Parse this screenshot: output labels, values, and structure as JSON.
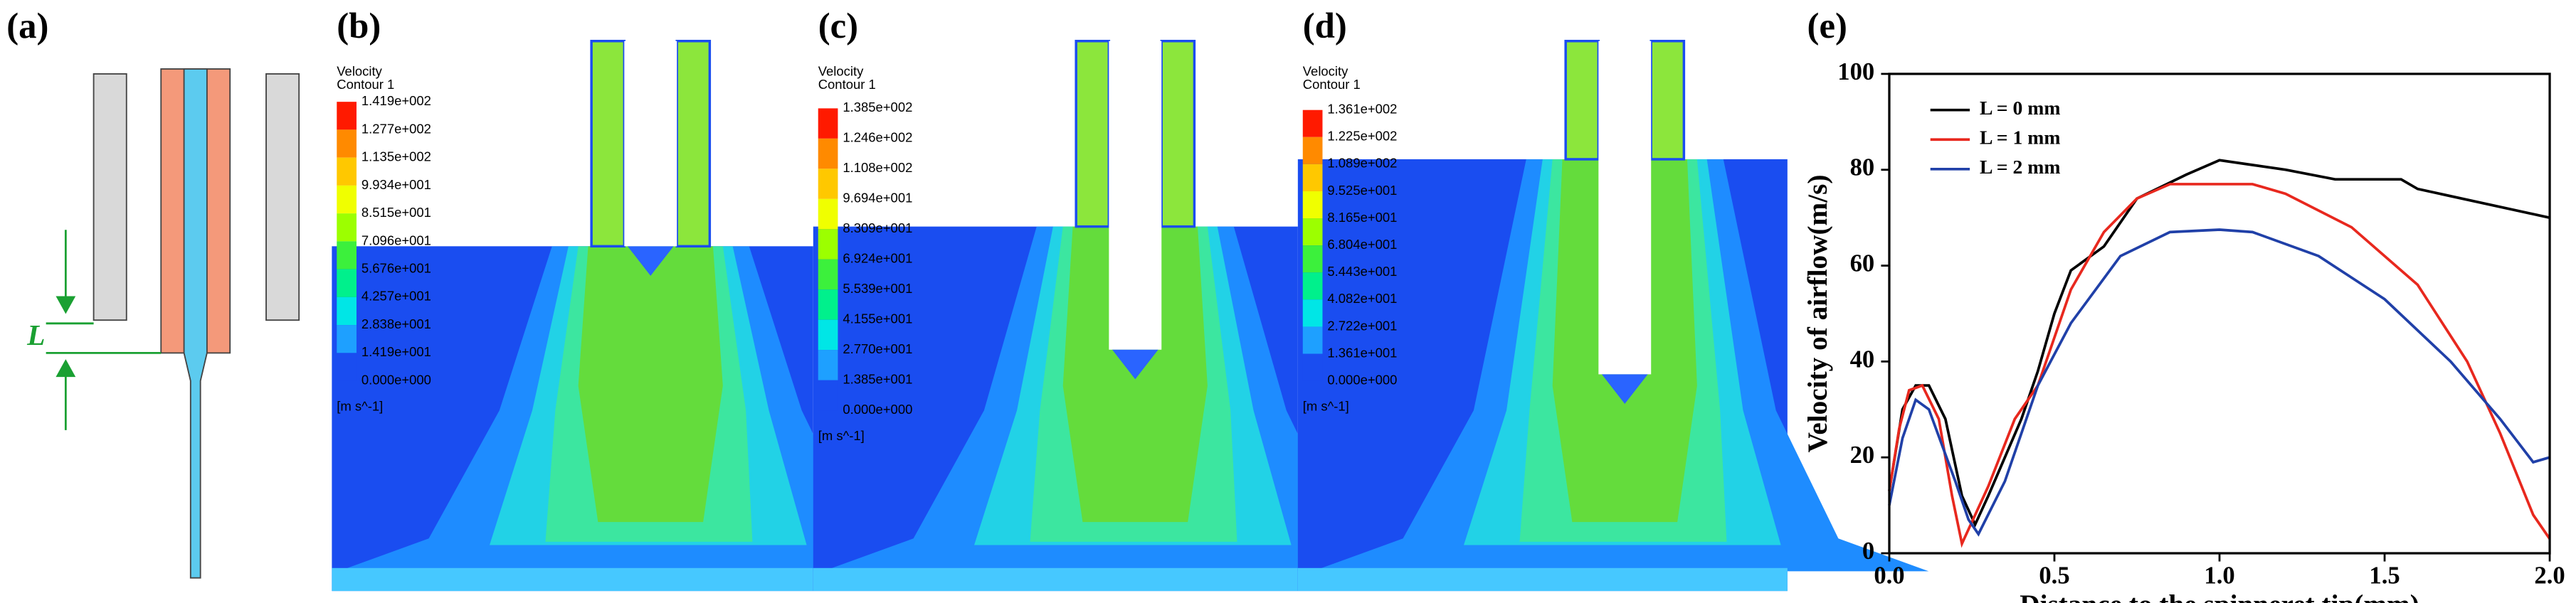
{
  "panel_a": {
    "label": "(a)",
    "dimension_label": "L"
  },
  "contours": [
    {
      "label": "(b)",
      "variable": "Velocity",
      "contour": "Contour 1",
      "levels": [
        "1.419e+002",
        "1.277e+002",
        "1.135e+002",
        "9.934e+001",
        "8.515e+001",
        "7.096e+001",
        "5.676e+001",
        "4.257e+001",
        "2.838e+001",
        "1.419e+001",
        "0.000e+000"
      ],
      "unit": "[m s^-1]"
    },
    {
      "label": "(c)",
      "variable": "Velocity",
      "contour": "Contour 1",
      "levels": [
        "1.385e+002",
        "1.246e+002",
        "1.108e+002",
        "9.694e+001",
        "8.309e+001",
        "6.924e+001",
        "5.539e+001",
        "4.155e+001",
        "2.770e+001",
        "1.385e+001",
        "0.000e+000"
      ],
      "unit": "[m s^-1]"
    },
    {
      "label": "(d)",
      "variable": "Velocity",
      "contour": "Contour 1",
      "levels": [
        "1.361e+002",
        "1.225e+002",
        "1.089e+002",
        "9.525e+001",
        "8.165e+001",
        "6.804e+001",
        "5.443e+001",
        "4.082e+001",
        "2.722e+001",
        "1.361e+001",
        "0.000e+000"
      ],
      "unit": "[m s^-1]"
    }
  ],
  "chart_data": {
    "type": "line",
    "label": "(e)",
    "x_label": "Distance to the spinneret tip(mm)",
    "y_label": "Velocity of airflow(m/s)",
    "xlim": [
      0,
      2
    ],
    "xticks": [
      {
        "value": 0,
        "label": "0.0"
      },
      0.5,
      {
        "value": 1,
        "label": "1.0"
      },
      1.5,
      {
        "value": 2,
        "label": "2.0"
      }
    ],
    "ylim": [
      0,
      100
    ],
    "yticks": [
      0,
      20,
      40,
      60,
      80,
      100
    ],
    "legend": "upper left",
    "series": [
      {
        "name": "L = 0 mm",
        "color": "#000000",
        "x": [
          0,
          0.04,
          0.08,
          0.12,
          0.17,
          0.22,
          0.26,
          0.3,
          0.35,
          0.4,
          0.45,
          0.5,
          0.55,
          0.65,
          0.75,
          0.9,
          1.0,
          1.1,
          1.2,
          1.35,
          1.55,
          1.6,
          1.8,
          2.0
        ],
        "values": [
          13,
          30,
          35,
          35,
          28,
          12,
          6,
          12,
          20,
          28,
          38,
          50,
          59,
          64,
          74,
          79,
          82,
          81,
          80,
          78,
          78,
          76,
          73,
          70
        ]
      },
      {
        "name": "L = 1 mm",
        "color": "#e8281e",
        "x": [
          0,
          0.03,
          0.06,
          0.1,
          0.15,
          0.19,
          0.22,
          0.26,
          0.3,
          0.38,
          0.45,
          0.55,
          0.65,
          0.75,
          0.85,
          1.0,
          1.1,
          1.2,
          1.4,
          1.6,
          1.75,
          1.85,
          1.95,
          2.0
        ],
        "values": [
          13,
          26,
          34,
          35,
          28,
          12,
          2,
          8,
          14,
          28,
          35,
          55,
          67,
          74,
          77,
          77,
          77,
          75,
          68,
          56,
          40,
          25,
          8,
          3
        ]
      },
      {
        "name": "L = 2 mm",
        "color": "#2040a8",
        "x": [
          0,
          0.04,
          0.08,
          0.12,
          0.2,
          0.24,
          0.27,
          0.35,
          0.45,
          0.55,
          0.7,
          0.85,
          1.0,
          1.1,
          1.3,
          1.5,
          1.7,
          1.85,
          1.95,
          2.0
        ],
        "values": [
          10,
          24,
          32,
          30,
          15,
          7,
          4,
          15,
          35,
          48,
          62,
          67,
          67.5,
          67,
          62,
          53,
          40,
          28,
          19,
          20
        ]
      }
    ]
  }
}
